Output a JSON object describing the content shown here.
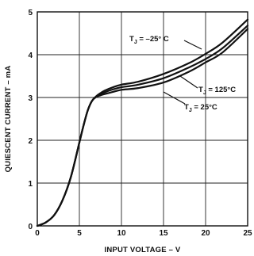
{
  "chart_data": {
    "type": "line",
    "xlabel": "INPUT VOLTAGE – V",
    "ylabel": "QUIESCENT CURRENT – mA",
    "xlim": [
      0,
      25
    ],
    "ylim": [
      0,
      5
    ],
    "grid": true,
    "x_ticks": [
      "0",
      "5",
      "10",
      "15",
      "20",
      "25"
    ],
    "y_ticks": [
      "0",
      "1",
      "2",
      "3",
      "4",
      "5"
    ],
    "series": [
      {
        "name": "TJ = –25° C",
        "label": {
          "prefix": "T",
          "sub": "J",
          "suffix": " = –25° C"
        },
        "x": [
          0,
          1,
          2,
          3,
          4,
          5,
          5.5,
          6,
          6.5,
          7,
          7.5,
          8,
          9,
          10,
          12,
          15,
          18,
          20,
          22,
          25
        ],
        "y": [
          0,
          0.08,
          0.25,
          0.6,
          1.15,
          1.95,
          2.35,
          2.7,
          2.92,
          3.03,
          3.1,
          3.16,
          3.24,
          3.3,
          3.37,
          3.55,
          3.8,
          4.02,
          4.28,
          4.82
        ]
      },
      {
        "name": "TJ = 125°C",
        "label": {
          "prefix": "T",
          "sub": "J",
          "suffix": " = 125°C"
        },
        "x": [
          0,
          1,
          2,
          3,
          4,
          5,
          5.5,
          6,
          6.5,
          7,
          7.5,
          8,
          9,
          10,
          12,
          15,
          18,
          20,
          22,
          25
        ],
        "y": [
          0,
          0.08,
          0.25,
          0.6,
          1.15,
          1.95,
          2.35,
          2.7,
          2.92,
          3.02,
          3.07,
          3.12,
          3.19,
          3.24,
          3.3,
          3.45,
          3.7,
          3.9,
          4.15,
          4.68
        ]
      },
      {
        "name": "TJ = 25°C",
        "label": {
          "prefix": "T",
          "sub": "J",
          "suffix": " = 25°C"
        },
        "x": [
          0,
          1,
          2,
          3,
          4,
          5,
          5.5,
          6,
          6.5,
          7,
          7.5,
          8,
          9,
          10,
          12,
          15,
          18,
          20,
          22,
          25
        ],
        "y": [
          0,
          0.08,
          0.25,
          0.6,
          1.15,
          1.95,
          2.35,
          2.7,
          2.92,
          3.01,
          3.05,
          3.08,
          3.13,
          3.18,
          3.22,
          3.35,
          3.6,
          3.82,
          4.05,
          4.6
        ]
      }
    ]
  }
}
